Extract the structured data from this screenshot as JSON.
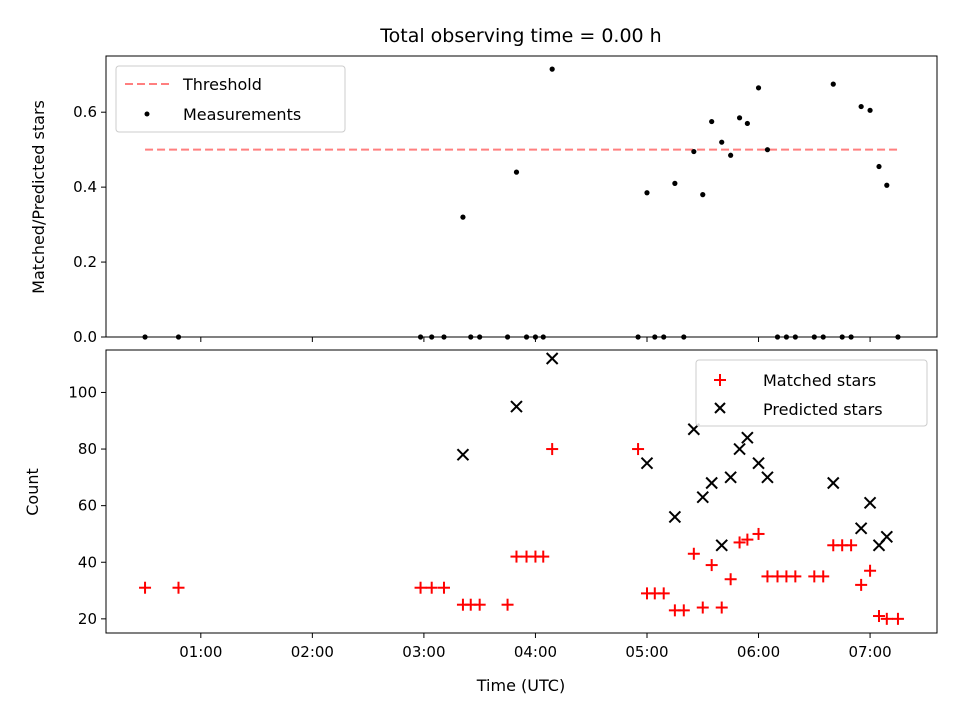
{
  "title": "Total observing time = 0.00 h",
  "chart_data": [
    {
      "type": "scatter",
      "ylabel": "Matched/Predicted stars",
      "ylim": [
        0,
        0.75
      ],
      "yticks": [
        0.0,
        0.2,
        0.4,
        0.6
      ],
      "ytick_labels": [
        "0.0",
        "0.2",
        "0.4",
        "0.6"
      ],
      "xlim": [
        0.15,
        7.6
      ],
      "legend": {
        "placement": "top-left",
        "threshold_label": "Threshold",
        "measurements_label": "Measurements"
      },
      "threshold": {
        "value": 0.5,
        "x_start": 0.5,
        "x_end": 7.25,
        "color": "#ff7f7f"
      },
      "series": [
        {
          "kind": "measurements",
          "color": "#000000",
          "points": [
            [
              0.5,
              0.0
            ],
            [
              0.8,
              0.0
            ],
            [
              2.97,
              0.0
            ],
            [
              3.07,
              0.0
            ],
            [
              3.18,
              0.0
            ],
            [
              3.35,
              0.32
            ],
            [
              3.42,
              0.0
            ],
            [
              3.5,
              0.0
            ],
            [
              3.75,
              0.0
            ],
            [
              3.83,
              0.44
            ],
            [
              3.92,
              0.0
            ],
            [
              4.0,
              0.0
            ],
            [
              4.07,
              0.0
            ],
            [
              4.15,
              0.715
            ],
            [
              4.92,
              0.0
            ],
            [
              5.0,
              0.385
            ],
            [
              5.07,
              0.0
            ],
            [
              5.15,
              0.0
            ],
            [
              5.25,
              0.41
            ],
            [
              5.33,
              0.0
            ],
            [
              5.42,
              0.495
            ],
            [
              5.5,
              0.38
            ],
            [
              5.58,
              0.575
            ],
            [
              5.67,
              0.52
            ],
            [
              5.75,
              0.485
            ],
            [
              5.83,
              0.585
            ],
            [
              5.9,
              0.57
            ],
            [
              6.0,
              0.665
            ],
            [
              6.08,
              0.5
            ],
            [
              6.17,
              0.0
            ],
            [
              6.25,
              0.0
            ],
            [
              6.33,
              0.0
            ],
            [
              6.5,
              0.0
            ],
            [
              6.58,
              0.0
            ],
            [
              6.67,
              0.675
            ],
            [
              6.75,
              0.0
            ],
            [
              6.83,
              0.0
            ],
            [
              6.92,
              0.615
            ],
            [
              7.0,
              0.605
            ],
            [
              7.08,
              0.455
            ],
            [
              7.15,
              0.405
            ],
            [
              7.25,
              0.0
            ]
          ]
        }
      ]
    },
    {
      "type": "scatter",
      "ylabel": "Count",
      "xlabel": "Time (UTC)",
      "ylim": [
        15,
        115
      ],
      "yticks": [
        20,
        40,
        60,
        80,
        100
      ],
      "ytick_labels": [
        "20",
        "40",
        "60",
        "80",
        "100"
      ],
      "xlim": [
        0.15,
        7.6
      ],
      "xticks": [
        1,
        2,
        3,
        4,
        5,
        6,
        7
      ],
      "xtick_labels": [
        "01:00",
        "02:00",
        "03:00",
        "04:00",
        "05:00",
        "06:00",
        "07:00"
      ],
      "legend": {
        "placement": "top-right",
        "matched_label": "Matched stars",
        "predicted_label": "Predicted stars"
      },
      "series": [
        {
          "kind": "matched",
          "color": "#ff0000",
          "points": [
            [
              0.5,
              31
            ],
            [
              0.8,
              31
            ],
            [
              2.97,
              31
            ],
            [
              3.07,
              31
            ],
            [
              3.18,
              31
            ],
            [
              3.35,
              25
            ],
            [
              3.42,
              25
            ],
            [
              3.5,
              25
            ],
            [
              3.75,
              25
            ],
            [
              3.83,
              42
            ],
            [
              3.92,
              42
            ],
            [
              4.0,
              42
            ],
            [
              4.07,
              42
            ],
            [
              4.15,
              80
            ],
            [
              4.92,
              80
            ],
            [
              5.0,
              29
            ],
            [
              5.07,
              29
            ],
            [
              5.15,
              29
            ],
            [
              5.25,
              23
            ],
            [
              5.33,
              23
            ],
            [
              5.42,
              43
            ],
            [
              5.5,
              24
            ],
            [
              5.58,
              39
            ],
            [
              5.67,
              24
            ],
            [
              5.75,
              34
            ],
            [
              5.83,
              47
            ],
            [
              5.9,
              48
            ],
            [
              6.0,
              50
            ],
            [
              6.08,
              35
            ],
            [
              6.17,
              35
            ],
            [
              6.25,
              35
            ],
            [
              6.33,
              35
            ],
            [
              6.5,
              35
            ],
            [
              6.58,
              35
            ],
            [
              6.67,
              46
            ],
            [
              6.75,
              46
            ],
            [
              6.83,
              46
            ],
            [
              6.92,
              32
            ],
            [
              7.0,
              37
            ],
            [
              7.08,
              21
            ],
            [
              7.15,
              20
            ],
            [
              7.25,
              20
            ]
          ]
        },
        {
          "kind": "predicted",
          "color": "#000000",
          "points": [
            [
              3.35,
              78
            ],
            [
              3.83,
              95
            ],
            [
              4.15,
              112
            ],
            [
              5.0,
              75
            ],
            [
              5.25,
              56
            ],
            [
              5.42,
              87
            ],
            [
              5.5,
              63
            ],
            [
              5.58,
              68
            ],
            [
              5.67,
              46
            ],
            [
              5.75,
              70
            ],
            [
              5.83,
              80
            ],
            [
              5.9,
              84
            ],
            [
              6.0,
              75
            ],
            [
              6.08,
              70
            ],
            [
              6.67,
              68
            ],
            [
              6.92,
              52
            ],
            [
              7.0,
              61
            ],
            [
              7.08,
              46
            ],
            [
              7.15,
              49
            ]
          ]
        }
      ]
    }
  ]
}
